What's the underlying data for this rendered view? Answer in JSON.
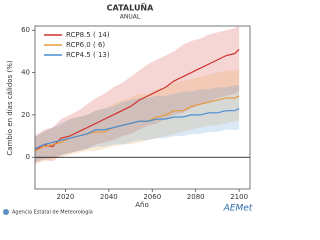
{
  "chart_data": {
    "type": "line",
    "title": "CATALUÑA",
    "subtitle": "ANUAL",
    "x_label": "Año",
    "y_label": "Cambio en días cálidos (%)",
    "source": "Agencia Estatal de Meteorología",
    "logo": "AEMet",
    "x": [
      2006,
      2010,
      2014,
      2018,
      2022,
      2026,
      2030,
      2034,
      2038,
      2042,
      2046,
      2050,
      2054,
      2058,
      2062,
      2066,
      2070,
      2074,
      2078,
      2082,
      2086,
      2090,
      2094,
      2098,
      2100
    ],
    "xlim": [
      2006,
      2105
    ],
    "xticks": [
      2020,
      2040,
      2060,
      2080,
      2100
    ],
    "ylim": [
      -15,
      62
    ],
    "yticks": [
      0,
      20,
      40,
      60
    ],
    "zero_line": true,
    "series": [
      {
        "name": "RCP8.5",
        "count_label": "( 14)",
        "color": "#d0312d",
        "values": [
          3,
          6,
          5,
          9,
          10,
          12,
          14,
          16,
          18,
          20,
          22,
          24,
          27,
          29,
          31,
          33,
          36,
          38,
          40,
          42,
          44,
          46,
          48,
          49,
          51
        ],
        "upper": [
          10,
          13,
          14,
          18,
          20,
          22,
          25,
          28,
          30,
          33,
          35,
          38,
          41,
          44,
          46,
          48,
          50,
          53,
          55,
          56,
          58,
          59,
          60,
          61,
          62
        ],
        "lower": [
          -3,
          -1,
          -2,
          1,
          2,
          3,
          4,
          6,
          7,
          8,
          10,
          11,
          13,
          15,
          16,
          18,
          20,
          21,
          23,
          25,
          26,
          28,
          29,
          30,
          31
        ]
      },
      {
        "name": "RCP6.0",
        "count_label": "( 6)",
        "color": "#e89a3c",
        "values": [
          3,
          5,
          6,
          7,
          9,
          10,
          11,
          12,
          12,
          14,
          15,
          16,
          17,
          17,
          19,
          20,
          22,
          22,
          24,
          25,
          26,
          27,
          28,
          28,
          29
        ],
        "upper": [
          9,
          12,
          14,
          15,
          18,
          19,
          20,
          22,
          23,
          25,
          27,
          28,
          30,
          30,
          32,
          33,
          35,
          36,
          37,
          38,
          39,
          40,
          41,
          41,
          42
        ],
        "lower": [
          -3,
          -2,
          -1,
          0,
          1,
          2,
          3,
          3,
          4,
          5,
          6,
          6,
          7,
          8,
          9,
          10,
          11,
          12,
          13,
          14,
          15,
          15,
          16,
          17,
          17
        ]
      },
      {
        "name": "RCP4.5",
        "count_label": "( 13)",
        "color": "#4a8fd4",
        "values": [
          4,
          6,
          7,
          8,
          9,
          10,
          11,
          13,
          13,
          14,
          15,
          16,
          17,
          17,
          18,
          18,
          19,
          19,
          20,
          20,
          21,
          21,
          22,
          22,
          23
        ],
        "upper": [
          10,
          12,
          14,
          16,
          18,
          19,
          20,
          22,
          23,
          24,
          26,
          27,
          28,
          28,
          29,
          29,
          30,
          31,
          31,
          32,
          32,
          33,
          33,
          34,
          34
        ],
        "lower": [
          -2,
          -1,
          0,
          1,
          2,
          3,
          4,
          5,
          5,
          6,
          6,
          7,
          8,
          8,
          9,
          9,
          10,
          10,
          11,
          11,
          12,
          12,
          13,
          13,
          13
        ]
      }
    ]
  }
}
